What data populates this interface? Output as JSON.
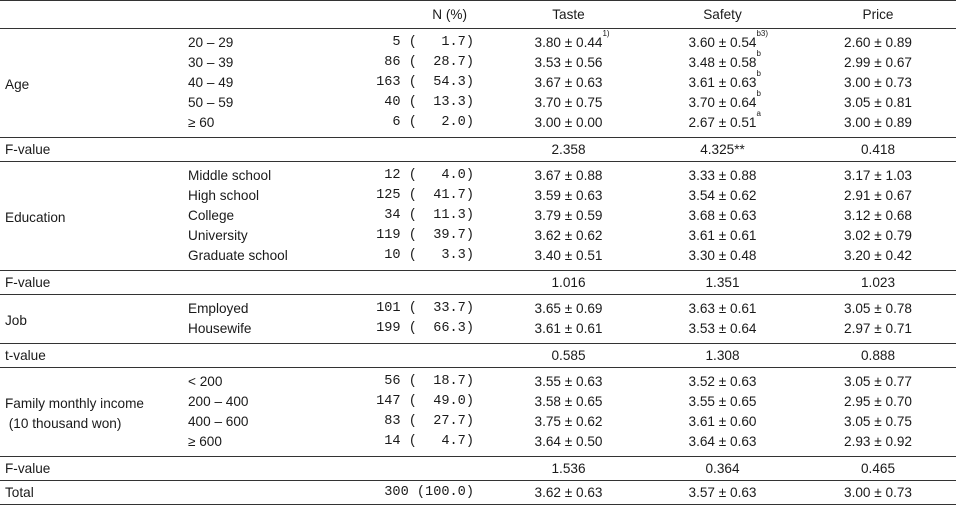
{
  "header": {
    "blank1": "",
    "blank2": "",
    "n_pct": "N (%)",
    "taste": "Taste",
    "safety": "Safety",
    "price": "Price"
  },
  "groups": [
    {
      "label": "Age",
      "rows": [
        {
          "sub": "20 – 29",
          "n": "5 (   1.7)",
          "taste": "3.80 ± 0.44",
          "taste_sup": "1)",
          "safety": "3.60 ± 0.54",
          "safety_sup": "b3)",
          "price": "2.60 ± 0.89"
        },
        {
          "sub": "30 – 39",
          "n": "86 (  28.7)",
          "taste": "3.53 ± 0.56",
          "taste_sup": "",
          "safety": "3.48 ± 0.58",
          "safety_sup": "b",
          "price": "2.99 ± 0.67"
        },
        {
          "sub": "40 – 49",
          "n": "163 (  54.3)",
          "taste": "3.67 ± 0.63",
          "taste_sup": "",
          "safety": "3.61 ± 0.63",
          "safety_sup": "b",
          "price": "3.00 ± 0.73"
        },
        {
          "sub": "50 – 59",
          "n": "40 (  13.3)",
          "taste": "3.70 ± 0.75",
          "taste_sup": "",
          "safety": "3.70 ± 0.64",
          "safety_sup": "b",
          "price": "3.05 ± 0.81"
        },
        {
          "sub": "≥ 60",
          "n": "6 (   2.0)",
          "taste": "3.00 ± 0.00",
          "taste_sup": "",
          "safety": "2.67 ± 0.51",
          "safety_sup": "a",
          "price": "3.00 ± 0.89"
        }
      ],
      "stat": {
        "label": "F-value",
        "taste": "2.358",
        "safety": "4.325**",
        "price": "0.418"
      }
    },
    {
      "label": "Education",
      "rows": [
        {
          "sub": "Middle school",
          "n": "12 (   4.0)",
          "taste": "3.67 ± 0.88",
          "taste_sup": "",
          "safety": "3.33 ± 0.88",
          "safety_sup": "",
          "price": "3.17 ± 1.03"
        },
        {
          "sub": "High school",
          "n": "125 (  41.7)",
          "taste": "3.59 ± 0.63",
          "taste_sup": "",
          "safety": "3.54 ± 0.62",
          "safety_sup": "",
          "price": "2.91 ± 0.67"
        },
        {
          "sub": "College",
          "n": "34 (  11.3)",
          "taste": "3.79 ± 0.59",
          "taste_sup": "",
          "safety": "3.68 ± 0.63",
          "safety_sup": "",
          "price": "3.12 ± 0.68"
        },
        {
          "sub": "University",
          "n": "119 (  39.7)",
          "taste": "3.62 ± 0.62",
          "taste_sup": "",
          "safety": "3.61 ± 0.61",
          "safety_sup": "",
          "price": "3.02 ± 0.79"
        },
        {
          "sub": "Graduate school",
          "n": "10 (   3.3)",
          "taste": "3.40 ± 0.51",
          "taste_sup": "",
          "safety": "3.30 ± 0.48",
          "safety_sup": "",
          "price": "3.20 ± 0.42"
        }
      ],
      "stat": {
        "label": "F-value",
        "taste": "1.016",
        "safety": "1.351",
        "price": "1.023"
      }
    },
    {
      "label": "Job",
      "rows": [
        {
          "sub": "Employed",
          "n": "101 (  33.7)",
          "taste": "3.65 ± 0.69",
          "taste_sup": "",
          "safety": "3.63 ± 0.61",
          "safety_sup": "",
          "price": "3.05 ± 0.78"
        },
        {
          "sub": "Housewife",
          "n": "199 (  66.3)",
          "taste": "3.61 ± 0.61",
          "taste_sup": "",
          "safety": "3.53 ± 0.64",
          "safety_sup": "",
          "price": "2.97 ± 0.71"
        }
      ],
      "stat": {
        "label": "t-value",
        "taste": "0.585",
        "safety": "1.308",
        "price": "0.888"
      }
    },
    {
      "label": "Family monthly income",
      "label2": " (10 thousand won)",
      "rows": [
        {
          "sub": "< 200",
          "n": "56 (  18.7)",
          "taste": "3.55 ± 0.63",
          "taste_sup": "",
          "safety": "3.52 ± 0.63",
          "safety_sup": "",
          "price": "3.05 ± 0.77"
        },
        {
          "sub": "200 – 400",
          "n": "147 (  49.0)",
          "taste": "3.58 ± 0.65",
          "taste_sup": "",
          "safety": "3.55 ± 0.65",
          "safety_sup": "",
          "price": "2.95 ± 0.70"
        },
        {
          "sub": "400 – 600",
          "n": "83 (  27.7)",
          "taste": "3.75 ± 0.62",
          "taste_sup": "",
          "safety": "3.61 ± 0.60",
          "safety_sup": "",
          "price": "3.05 ± 0.75"
        },
        {
          "sub": "≥ 600",
          "n": "14 (   4.7)",
          "taste": "3.64 ± 0.50",
          "taste_sup": "",
          "safety": "3.64 ± 0.63",
          "safety_sup": "",
          "price": "2.93 ± 0.92"
        }
      ],
      "stat": {
        "label": "F-value",
        "taste": "1.536",
        "safety": "0.364",
        "price": "0.465"
      }
    }
  ],
  "total": {
    "label": "Total",
    "n": "300 (100.0)",
    "taste": "3.62 ± 0.63",
    "safety": "3.57 ± 0.63",
    "price": "3.00 ± 0.73"
  }
}
